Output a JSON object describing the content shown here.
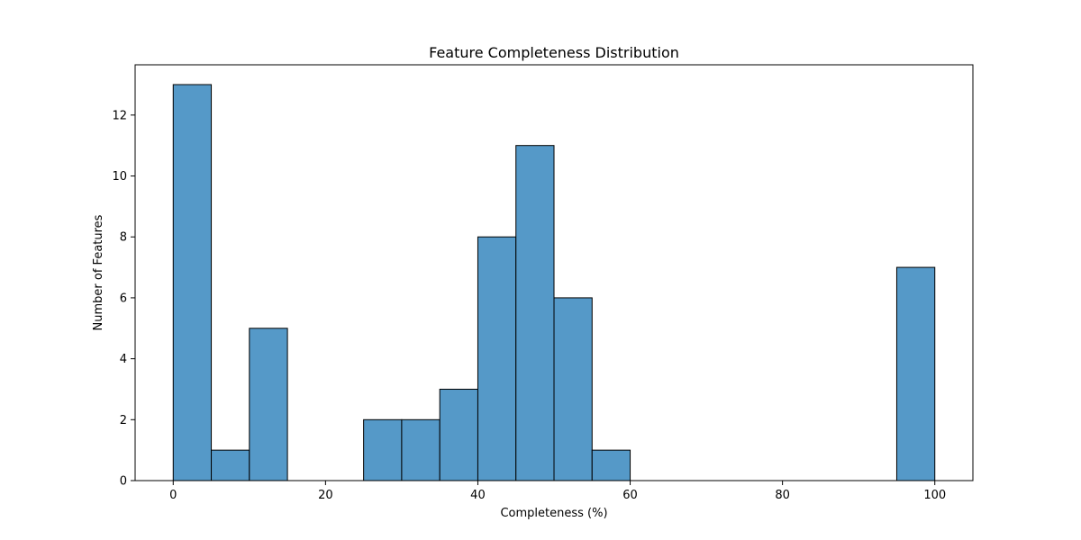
{
  "chart_data": {
    "type": "bar",
    "title": "Feature Completeness Distribution",
    "xlabel": "Completeness (%)",
    "ylabel": "Number of Features",
    "bins": [
      {
        "start": 0,
        "end": 5,
        "count": 13
      },
      {
        "start": 5,
        "end": 10,
        "count": 1
      },
      {
        "start": 10,
        "end": 15,
        "count": 5
      },
      {
        "start": 15,
        "end": 20,
        "count": 0
      },
      {
        "start": 20,
        "end": 25,
        "count": 0
      },
      {
        "start": 25,
        "end": 30,
        "count": 2
      },
      {
        "start": 30,
        "end": 35,
        "count": 2
      },
      {
        "start": 35,
        "end": 40,
        "count": 3
      },
      {
        "start": 40,
        "end": 45,
        "count": 8
      },
      {
        "start": 45,
        "end": 50,
        "count": 11
      },
      {
        "start": 50,
        "end": 55,
        "count": 6
      },
      {
        "start": 55,
        "end": 60,
        "count": 1
      },
      {
        "start": 60,
        "end": 65,
        "count": 0
      },
      {
        "start": 65,
        "end": 70,
        "count": 0
      },
      {
        "start": 70,
        "end": 75,
        "count": 0
      },
      {
        "start": 75,
        "end": 80,
        "count": 0
      },
      {
        "start": 80,
        "end": 85,
        "count": 0
      },
      {
        "start": 85,
        "end": 90,
        "count": 0
      },
      {
        "start": 90,
        "end": 95,
        "count": 0
      },
      {
        "start": 95,
        "end": 100,
        "count": 7
      }
    ],
    "xlim": [
      -5,
      105
    ],
    "ylim": [
      0,
      13.65
    ],
    "xticks": [
      0,
      20,
      40,
      60,
      80,
      100
    ],
    "yticks": [
      0,
      2,
      4,
      6,
      8,
      10,
      12
    ],
    "grid": false,
    "colors": {
      "bar_fill": "#5599c8",
      "bar_edge": "#000000",
      "axis": "#000000",
      "background": "#ffffff"
    }
  }
}
